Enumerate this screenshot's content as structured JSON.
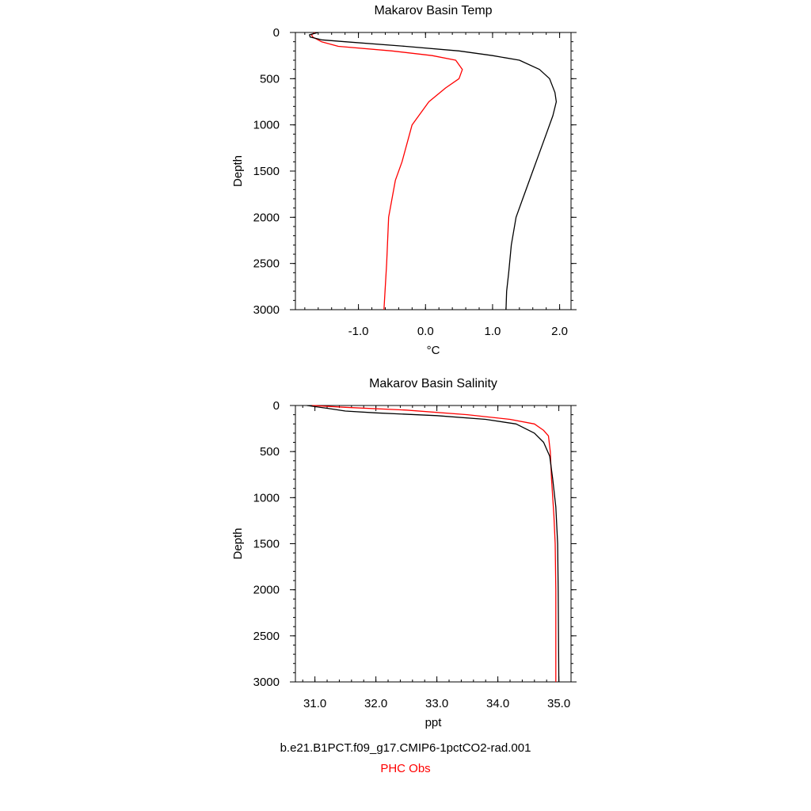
{
  "captions": {
    "model": "b.e21.B1PCT.f09_g17.CMIP6-1pctCO2-rad.001",
    "obs": "PHC Obs"
  },
  "colors": {
    "model": "#000000",
    "obs": "#ff0000"
  },
  "chart_data": [
    {
      "type": "line",
      "title": "Makarov Basin Temp",
      "xlabel": "°C",
      "ylabel": "Depth",
      "xlim": [
        -1.94,
        2.17
      ],
      "ylim": [
        0,
        3000
      ],
      "y_inverted": true,
      "xticks": [
        -1.0,
        0.0,
        1.0,
        2.0
      ],
      "xtick_labels": [
        "-1.0",
        "0.0",
        "1.0",
        "2.0"
      ],
      "xminor_step": 0.2,
      "yticks": [
        0,
        500,
        1000,
        1500,
        2000,
        2500,
        3000
      ],
      "ytick_labels": [
        "0",
        "500",
        "1000",
        "1500",
        "2000",
        "2500",
        "3000"
      ],
      "yminor_step": 100,
      "series": [
        {
          "name": "b.e21.B1PCT.f09_g17.CMIP6-1pctCO2-rad.001",
          "color": "#000000",
          "points": [
            [
              -1.6,
              0
            ],
            [
              -1.73,
              25
            ],
            [
              -1.72,
              50
            ],
            [
              -1.55,
              80
            ],
            [
              -1.2,
              100
            ],
            [
              -0.3,
              150
            ],
            [
              0.5,
              200
            ],
            [
              1.0,
              250
            ],
            [
              1.4,
              300
            ],
            [
              1.7,
              400
            ],
            [
              1.85,
              500
            ],
            [
              1.93,
              650
            ],
            [
              1.95,
              750
            ],
            [
              1.9,
              900
            ],
            [
              1.8,
              1100
            ],
            [
              1.7,
              1300
            ],
            [
              1.6,
              1500
            ],
            [
              1.45,
              1800
            ],
            [
              1.35,
              2000
            ],
            [
              1.28,
              2300
            ],
            [
              1.24,
              2600
            ],
            [
              1.21,
              2800
            ],
            [
              1.2,
              3000
            ]
          ]
        },
        {
          "name": "PHC Obs",
          "color": "#ff0000",
          "points": [
            [
              -1.65,
              0
            ],
            [
              -1.7,
              25
            ],
            [
              -1.68,
              50
            ],
            [
              -1.55,
              100
            ],
            [
              -1.3,
              150
            ],
            [
              -0.5,
              200
            ],
            [
              0.1,
              250
            ],
            [
              0.45,
              300
            ],
            [
              0.55,
              400
            ],
            [
              0.5,
              500
            ],
            [
              0.3,
              600
            ],
            [
              0.05,
              750
            ],
            [
              -0.2,
              1000
            ],
            [
              -0.35,
              1400
            ],
            [
              -0.45,
              1600
            ],
            [
              -0.55,
              2000
            ],
            [
              -0.58,
              2500
            ],
            [
              -0.62,
              3000
            ]
          ]
        }
      ]
    },
    {
      "type": "line",
      "title": "Makarov Basin Salinity",
      "xlabel": "ppt",
      "ylabel": "Depth",
      "xlim": [
        30.68,
        35.2
      ],
      "ylim": [
        0,
        3000
      ],
      "y_inverted": true,
      "xticks": [
        31.0,
        32.0,
        33.0,
        34.0,
        35.0
      ],
      "xtick_labels": [
        "31.0",
        "32.0",
        "33.0",
        "34.0",
        "35.0"
      ],
      "xminor_step": 0.2,
      "yticks": [
        0,
        500,
        1000,
        1500,
        2000,
        2500,
        3000
      ],
      "ytick_labels": [
        "0",
        "500",
        "1000",
        "1500",
        "2000",
        "2500",
        "3000"
      ],
      "yminor_step": 100,
      "series": [
        {
          "name": "b.e21.B1PCT.f09_g17.CMIP6-1pctCO2-rad.001",
          "color": "#000000",
          "points": [
            [
              30.87,
              0
            ],
            [
              31.2,
              30
            ],
            [
              31.5,
              60
            ],
            [
              32.0,
              80
            ],
            [
              33.0,
              110
            ],
            [
              33.8,
              150
            ],
            [
              34.3,
              200
            ],
            [
              34.6,
              300
            ],
            [
              34.75,
              400
            ],
            [
              34.85,
              550
            ],
            [
              34.9,
              800
            ],
            [
              34.95,
              1100
            ],
            [
              34.98,
              1500
            ],
            [
              34.99,
              2000
            ],
            [
              35.0,
              3000
            ]
          ]
        },
        {
          "name": "PHC Obs",
          "color": "#ff0000",
          "points": [
            [
              30.95,
              0
            ],
            [
              31.5,
              20
            ],
            [
              32.5,
              50
            ],
            [
              33.5,
              100
            ],
            [
              34.2,
              150
            ],
            [
              34.6,
              200
            ],
            [
              34.75,
              270
            ],
            [
              34.83,
              330
            ],
            [
              34.86,
              500
            ],
            [
              34.88,
              800
            ],
            [
              34.92,
              1200
            ],
            [
              34.94,
              1500
            ],
            [
              34.95,
              2000
            ],
            [
              34.95,
              3000
            ]
          ]
        }
      ]
    }
  ]
}
